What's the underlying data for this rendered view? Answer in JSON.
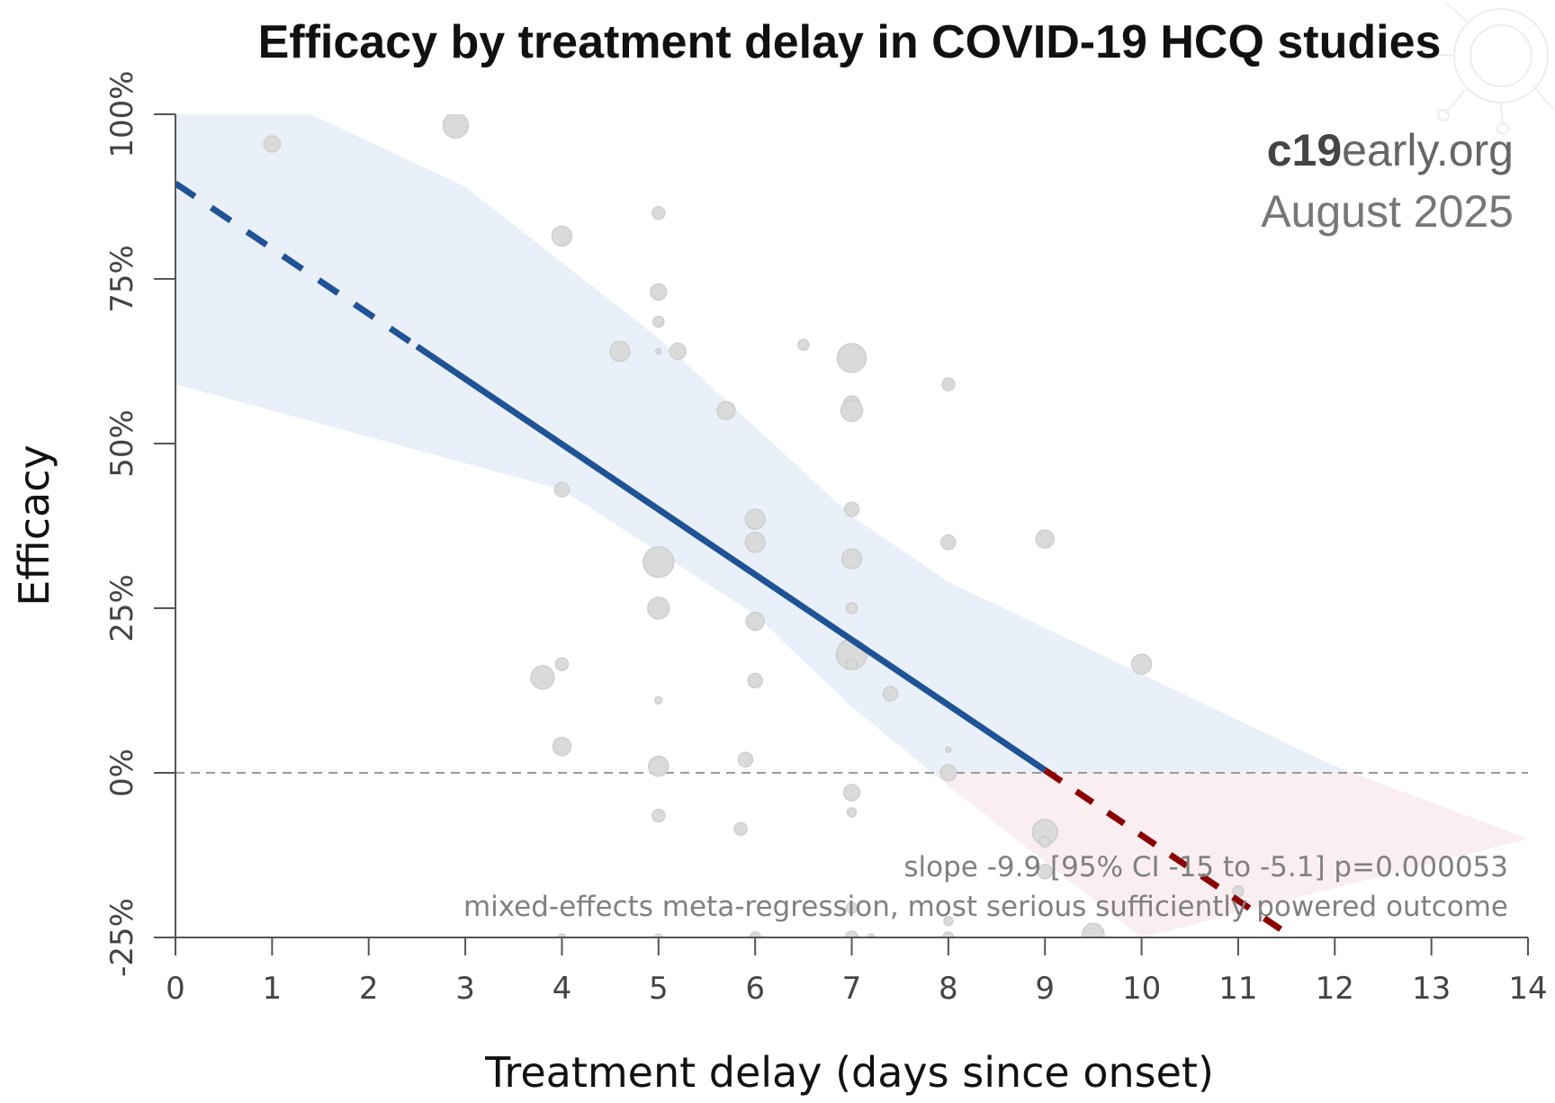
{
  "chart_data": {
    "type": "scatter",
    "title": "Efficacy by treatment delay in COVID-19 HCQ studies",
    "xlabel": "Treatment delay (days since onset)",
    "ylabel": "Efficacy",
    "xlim": [
      0,
      14
    ],
    "ylim": [
      -25,
      100
    ],
    "x_ticks": [
      "0",
      "1",
      "2",
      "3",
      "4",
      "5",
      "6",
      "7",
      "8",
      "9",
      "10",
      "11",
      "12",
      "13",
      "14"
    ],
    "x_tick_values": [
      0,
      1,
      2,
      3,
      4,
      5,
      6,
      7,
      8,
      9,
      10,
      11,
      12,
      13,
      14
    ],
    "y_ticks": [
      "-25%",
      "0%",
      "25%",
      "50%",
      "75%",
      "100%"
    ],
    "y_tick_values": [
      -25,
      0,
      25,
      50,
      75,
      100
    ],
    "grid": false,
    "reference_line_y": 0,
    "brand": {
      "bold": "c19",
      "light": "early",
      "suffix": ".org",
      "date": "August 2025"
    },
    "annotations": [
      "slope -9.9 [95% CI -15 to -5.1] p=0.000053",
      "mixed-effects meta-regression, most serious sufficiently powered outcome"
    ],
    "regression": {
      "intercept": 89.5,
      "slope": -9.9,
      "solid_x": [
        2.5,
        9.0
      ],
      "dashed_left_x": [
        0,
        2.5
      ],
      "dashed_right_x": [
        9.0,
        11.6
      ],
      "ci_upper": [
        [
          0,
          100
        ],
        [
          1.4,
          100
        ],
        [
          3,
          89
        ],
        [
          5,
          66
        ],
        [
          7,
          39
        ],
        [
          8,
          29
        ],
        [
          10,
          15
        ],
        [
          12,
          1
        ],
        [
          14,
          -10
        ]
      ],
      "ci_lower": [
        [
          0,
          59
        ],
        [
          2,
          51
        ],
        [
          4,
          43
        ],
        [
          6,
          24
        ],
        [
          7,
          10
        ],
        [
          8,
          -2
        ],
        [
          10,
          -25
        ]
      ]
    },
    "colors": {
      "regression_positive": "#1f5296",
      "regression_negative": "#8b0000",
      "ci_positive": "#eaf0f9",
      "ci_negative": "#fbeef0",
      "points": "#d9d9d9",
      "zero_line": "#9a9a9a"
    },
    "points": [
      {
        "x": 1.0,
        "y": 95.5,
        "size": 9
      },
      {
        "x": 2.9,
        "y": 98.3,
        "size": 14
      },
      {
        "x": 4.0,
        "y": 81.5,
        "size": 11
      },
      {
        "x": 4.0,
        "y": 43.0,
        "size": 8
      },
      {
        "x": 4.0,
        "y": 16.5,
        "size": 7
      },
      {
        "x": 4.0,
        "y": 4.0,
        "size": 10
      },
      {
        "x": 4.0,
        "y": -25.0,
        "size": 4
      },
      {
        "x": 3.8,
        "y": 14.5,
        "size": 13
      },
      {
        "x": 4.6,
        "y": 64.0,
        "size": 11
      },
      {
        "x": 5.0,
        "y": 85.0,
        "size": 7
      },
      {
        "x": 5.0,
        "y": 73.0,
        "size": 9
      },
      {
        "x": 5.0,
        "y": 68.5,
        "size": 6
      },
      {
        "x": 5.0,
        "y": 64.0,
        "size": 3
      },
      {
        "x": 5.2,
        "y": 64.0,
        "size": 9
      },
      {
        "x": 5.0,
        "y": 32.0,
        "size": 17
      },
      {
        "x": 5.0,
        "y": 25.0,
        "size": 12
      },
      {
        "x": 5.0,
        "y": 11.0,
        "size": 4
      },
      {
        "x": 5.0,
        "y": 1.0,
        "size": 11
      },
      {
        "x": 5.0,
        "y": -6.5,
        "size": 7
      },
      {
        "x": 5.0,
        "y": -25.0,
        "size": 4
      },
      {
        "x": 5.7,
        "y": 55.0,
        "size": 10
      },
      {
        "x": 6.0,
        "y": 38.5,
        "size": 11
      },
      {
        "x": 6.0,
        "y": 35.0,
        "size": 11
      },
      {
        "x": 6.0,
        "y": 23.0,
        "size": 10
      },
      {
        "x": 6.0,
        "y": 14.0,
        "size": 8
      },
      {
        "x": 5.9,
        "y": 2.0,
        "size": 8
      },
      {
        "x": 5.85,
        "y": -8.5,
        "size": 7
      },
      {
        "x": 6.0,
        "y": -25.0,
        "size": 6
      },
      {
        "x": 6.5,
        "y": 65.0,
        "size": 6
      },
      {
        "x": 7.0,
        "y": 63.0,
        "size": 16
      },
      {
        "x": 7.0,
        "y": 56.0,
        "size": 9
      },
      {
        "x": 7.0,
        "y": 55.0,
        "size": 12
      },
      {
        "x": 7.0,
        "y": 40.0,
        "size": 8
      },
      {
        "x": 7.0,
        "y": 32.5,
        "size": 11
      },
      {
        "x": 7.0,
        "y": 25.0,
        "size": 6
      },
      {
        "x": 7.0,
        "y": 18.0,
        "size": 17
      },
      {
        "x": 7.0,
        "y": 16.5,
        "size": 6
      },
      {
        "x": 7.0,
        "y": -3.0,
        "size": 9
      },
      {
        "x": 7.0,
        "y": -6.0,
        "size": 5
      },
      {
        "x": 7.0,
        "y": -20.5,
        "size": 6
      },
      {
        "x": 7.0,
        "y": -25.0,
        "size": 7
      },
      {
        "x": 7.2,
        "y": -25.0,
        "size": 4
      },
      {
        "x": 7.4,
        "y": 12.0,
        "size": 8
      },
      {
        "x": 8.0,
        "y": 59.0,
        "size": 7
      },
      {
        "x": 8.0,
        "y": 35.0,
        "size": 8
      },
      {
        "x": 8.0,
        "y": 3.5,
        "size": 3
      },
      {
        "x": 8.0,
        "y": 0.0,
        "size": 9
      },
      {
        "x": 8.0,
        "y": -22.5,
        "size": 5
      },
      {
        "x": 8.0,
        "y": -25.0,
        "size": 6
      },
      {
        "x": 9.0,
        "y": 35.5,
        "size": 10
      },
      {
        "x": 9.0,
        "y": -9.0,
        "size": 14
      },
      {
        "x": 9.0,
        "y": -10.5,
        "size": 6
      },
      {
        "x": 9.0,
        "y": -15.0,
        "size": 8
      },
      {
        "x": 9.5,
        "y": -24.5,
        "size": 12
      },
      {
        "x": 10.0,
        "y": 16.5,
        "size": 11
      },
      {
        "x": 11.0,
        "y": -18.0,
        "size": 6
      }
    ]
  }
}
